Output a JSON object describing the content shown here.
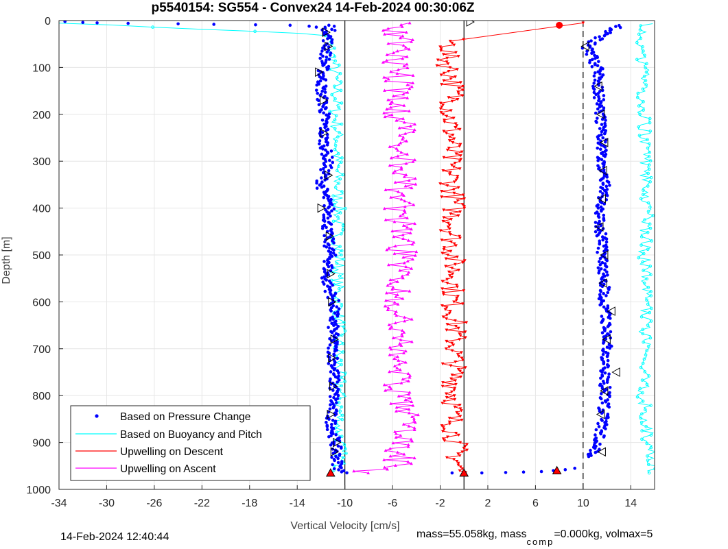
{
  "footer": {
    "timestamp": "14-Feb-2024 12:40:44",
    "mass_pre": "mass=55.058kg, mass",
    "mass_sub": "comp",
    "mass_post": "=0.000kg, volmax=5"
  },
  "chart_data": {
    "type": "line",
    "title": "p5540154: SG554 - Convex24 14-Feb-2024 00:30:06Z",
    "xlabel": "Vertical Velocity [cm/s]",
    "ylabel": "Depth [m]",
    "xlim": [
      -34,
      16
    ],
    "ylim": [
      1000,
      0
    ],
    "y_reversed": true,
    "grid": true,
    "legend_position": "bottom-left",
    "xticks": [
      -34,
      -30,
      -26,
      -22,
      -18,
      -14,
      -10,
      -6,
      -2,
      2,
      6,
      10,
      14
    ],
    "yticks": [
      0,
      100,
      200,
      300,
      400,
      500,
      600,
      700,
      800,
      900,
      1000
    ],
    "xtick_labels": [
      "-34",
      "-30",
      "-26",
      "-22",
      "-18",
      "-14",
      "-10",
      "-6",
      "-2",
      "2",
      "6",
      "10",
      "14"
    ],
    "ytick_labels": [
      "0",
      "100",
      "200",
      "300",
      "400",
      "500",
      "600",
      "700",
      "800",
      "900",
      "1000"
    ],
    "reference_lines": [
      {
        "x": -10,
        "style": "solid",
        "color": "#000000"
      },
      {
        "x": 0,
        "style": "solid",
        "color": "#000000"
      },
      {
        "x": 10,
        "style": "dashed",
        "color": "#000000"
      }
    ],
    "series": [
      {
        "name": "Based on Pressure Change",
        "color": "#0000ff",
        "marker": "dot",
        "segments": [
          {
            "depth": [
              10,
              60,
              100,
              150,
              200,
              250,
              300,
              350,
              400,
              450,
              500,
              550,
              600,
              650,
              700,
              750,
              800,
              850,
              900,
              950,
              965
            ],
            "velocity": [
              -11.2,
              -11.5,
              -11.8,
              -12.0,
              -11.7,
              -11.8,
              -11.4,
              -12.0,
              -11.3,
              -11.5,
              -11.2,
              -11.6,
              -10.9,
              -11.0,
              -11.0,
              -10.9,
              -10.9,
              -11.2,
              -10.8,
              -10.6,
              -10.2
            ]
          },
          {
            "depth": [
              930,
              900,
              850,
              800,
              750,
              700,
              650,
              600,
              550,
              500,
              450,
              400,
              350,
              300,
              250,
              200,
              150,
              100,
              55,
              10
            ],
            "velocity": [
              10.8,
              11.2,
              11.7,
              11.8,
              11.9,
              12.0,
              12.0,
              11.7,
              11.8,
              11.6,
              11.5,
              11.4,
              11.8,
              11.5,
              11.6,
              11.4,
              11.3,
              11.2,
              10.3,
              13.0
            ]
          }
        ],
        "surface_points": {
          "depth": [
            2,
            4,
            5,
            6,
            7,
            8,
            9,
            10,
            12,
            14,
            20
          ],
          "velocity": [
            -33.5,
            -32.0,
            -30.8,
            -28.2,
            -24.0,
            -21.0,
            -17.5,
            -14.6,
            -13.0,
            -12.4,
            -11.9
          ]
        },
        "bottom_points": {
          "depth": [
            965,
            965,
            964,
            963,
            962,
            960,
            958,
            955
          ],
          "velocity": [
            -1.0,
            1.5,
            3.5,
            5.0,
            6.5,
            7.5,
            8.5,
            9.3
          ]
        }
      },
      {
        "name": "Based on Buoyancy and Pitch",
        "color": "#00ffff",
        "marker": "circle",
        "segments": [
          {
            "depth": [
              5,
              30,
              60,
              100,
              150,
              200,
              250,
              300,
              350,
              400,
              450,
              500,
              550,
              600,
              650,
              700,
              750,
              800,
              850,
              900,
              950,
              965
            ],
            "velocity": [
              -34.0,
              -11.5,
              -11.2,
              -10.9,
              -10.7,
              -10.8,
              -10.6,
              -10.7,
              -10.6,
              -10.5,
              -10.6,
              -10.5,
              -10.6,
              -10.5,
              -10.5,
              -10.6,
              -10.5,
              -10.4,
              -10.5,
              -10.4,
              -10.4,
              -10.5
            ]
          },
          {
            "depth": [
              965,
              910,
              850,
              750,
              600,
              500,
              400,
              300,
              200,
              100,
              30,
              5
            ],
            "velocity": [
              16.0,
              15.5,
              15.2,
              15.0,
              15.3,
              15.2,
              15.4,
              15.2,
              15.1,
              15.0,
              15.0,
              15.5
            ]
          }
        ]
      },
      {
        "name": "Upwelling on Descent",
        "color": "#ff0000",
        "marker": "triangle-down",
        "depth": [
          5,
          40,
          80,
          120,
          160,
          200,
          250,
          300,
          350,
          400,
          450,
          500,
          550,
          600,
          650,
          700,
          750,
          800,
          850,
          900,
          950,
          965
        ],
        "velocity": [
          10.0,
          -1.0,
          -1.5,
          -1.0,
          -0.8,
          -1.2,
          -1.0,
          -1.2,
          -1.0,
          -0.8,
          -1.0,
          -0.9,
          -0.8,
          -1.0,
          -0.7,
          -0.8,
          -0.8,
          -0.8,
          -1.0,
          -0.7,
          -0.5,
          -0.3
        ]
      },
      {
        "name": "Upwelling on Ascent",
        "color": "#ff00ff",
        "marker": "triangle-up",
        "depth": [
          965,
          950,
          900,
          850,
          800,
          750,
          700,
          650,
          600,
          550,
          500,
          450,
          400,
          350,
          300,
          250,
          200,
          150,
          100,
          60,
          15,
          2
        ],
        "velocity": [
          -9.0,
          -5.5,
          -5.3,
          -5.0,
          -5.4,
          -5.5,
          -5.6,
          -5.3,
          -5.5,
          -5.4,
          -5.3,
          -5.2,
          -5.5,
          -5.3,
          -5.0,
          -5.2,
          -5.5,
          -5.4,
          -5.6,
          -5.3,
          -6.0,
          -4.0
        ]
      }
    ],
    "markers": [
      {
        "symbol": "triangle-right",
        "color": "#000000",
        "depth": [
          3,
          25,
          55,
          110,
          170,
          240,
          330,
          400,
          460,
          540,
          600,
          680,
          720,
          780,
          840,
          900,
          920
        ],
        "velocity": [
          0.5,
          -11.6,
          -11.4,
          -12.2,
          -11.8,
          -11.8,
          -11.4,
          -12.0,
          -11.3,
          -11.2,
          -11.1,
          -10.9,
          -11.1,
          -11.0,
          -11.2,
          -10.7,
          -10.9
        ]
      },
      {
        "symbol": "triangle-left",
        "color": "#000000",
        "depth": [
          55,
          140,
          200,
          260,
          320,
          380,
          440,
          500,
          560,
          620,
          680,
          750,
          790,
          840,
          920
        ],
        "velocity": [
          10.2,
          11.3,
          11.5,
          11.8,
          11.7,
          11.6,
          11.4,
          11.8,
          11.7,
          12.4,
          12.0,
          12.8,
          11.8,
          11.5,
          11.6
        ]
      }
    ],
    "highlight_points": [
      {
        "symbol": "circle",
        "color": "#ff0000",
        "depth": 10,
        "velocity": 8.0
      },
      {
        "symbol": "triangle-up",
        "color": "#ff0000",
        "depth": 960,
        "velocity": 7.8
      },
      {
        "symbol": "triangle-up",
        "color": "#ff0000",
        "depth": 965,
        "velocity": -11.2
      },
      {
        "symbol": "triangle-up",
        "color": "#ff0000",
        "depth": 965,
        "velocity": 0.0
      }
    ]
  }
}
